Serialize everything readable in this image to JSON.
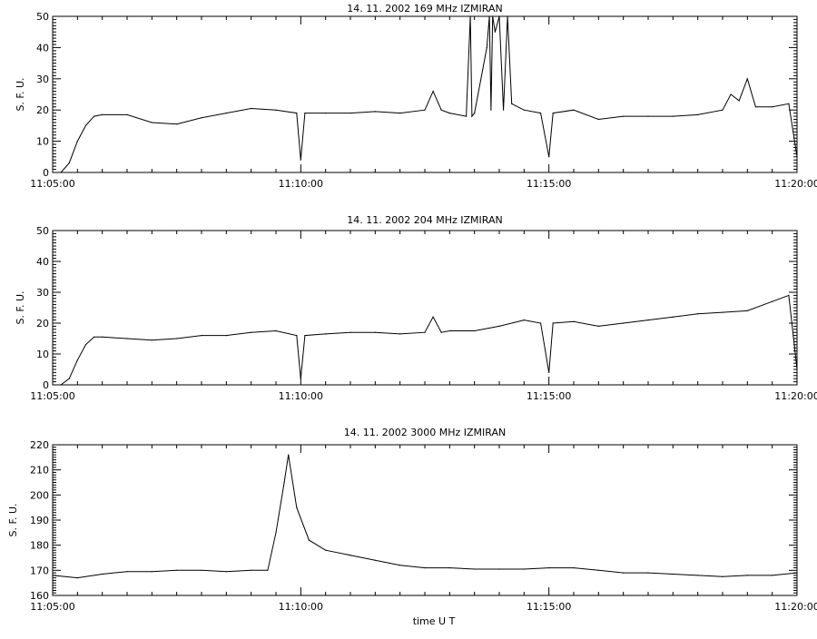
{
  "chart_data": [
    {
      "type": "line",
      "title": "14.  11.  2002    169 MHz     IZMIRAN",
      "xlabel": "",
      "ylabel": "S. F. U.",
      "xlim": [
        "11:05:00",
        "11:20:00"
      ],
      "ylim": [
        0,
        50
      ],
      "yticks": [
        0,
        10,
        20,
        30,
        40,
        50
      ],
      "xticks": [
        "11:05:00",
        "11:10:00",
        "11:15:00",
        "11:20:00"
      ],
      "grid": false,
      "series": [
        {
          "x": [
            "11:05:00",
            "11:05:10",
            "11:05:20",
            "11:05:30",
            "11:05:40",
            "11:05:50",
            "11:06:00",
            "11:06:30",
            "11:07:00",
            "11:07:30",
            "11:08:00",
            "11:08:30",
            "11:09:00",
            "11:09:30",
            "11:09:55",
            "11:10:00",
            "11:10:05",
            "11:10:30",
            "11:11:00",
            "11:11:30",
            "11:12:00",
            "11:12:30",
            "11:12:40",
            "11:12:50",
            "11:13:00",
            "11:13:20",
            "11:13:25",
            "11:13:27",
            "11:13:30",
            "11:13:45",
            "11:13:48",
            "11:13:50",
            "11:13:52",
            "11:13:55",
            "11:14:00",
            "11:14:05",
            "11:14:10",
            "11:14:15",
            "11:14:30",
            "11:14:50",
            "11:15:00",
            "11:15:05",
            "11:15:30",
            "11:16:00",
            "11:16:30",
            "11:17:00",
            "11:17:30",
            "11:18:00",
            "11:18:30",
            "11:18:40",
            "11:18:50",
            "11:19:00",
            "11:19:10",
            "11:19:30",
            "11:19:50",
            "11:20:00"
          ],
          "y": [
            0,
            0,
            3,
            10,
            15,
            18,
            18.5,
            18.5,
            16,
            15.5,
            17.5,
            19,
            20.5,
            20,
            19,
            4,
            19,
            19,
            19,
            19.5,
            19,
            20,
            26,
            20,
            19,
            18,
            50,
            18,
            19,
            40,
            50,
            20,
            50,
            45,
            50,
            20,
            50,
            22,
            20,
            19,
            5,
            19,
            20,
            17,
            18,
            18,
            18,
            18.5,
            20,
            25,
            23,
            30,
            21,
            21,
            22,
            5
          ]
        }
      ]
    },
    {
      "type": "line",
      "title": "14.  11.  2002    204 MHz     IZMIRAN",
      "xlabel": "",
      "ylabel": "S. F. U.",
      "xlim": [
        "11:05:00",
        "11:20:00"
      ],
      "ylim": [
        0,
        50
      ],
      "yticks": [
        0,
        10,
        20,
        30,
        40,
        50
      ],
      "xticks": [
        "11:05:00",
        "11:10:00",
        "11:15:00",
        "11:20:00"
      ],
      "grid": false,
      "series": [
        {
          "x": [
            "11:05:00",
            "11:05:10",
            "11:05:20",
            "11:05:30",
            "11:05:40",
            "11:05:50",
            "11:06:00",
            "11:06:30",
            "11:07:00",
            "11:07:30",
            "11:08:00",
            "11:08:30",
            "11:09:00",
            "11:09:30",
            "11:09:55",
            "11:10:00",
            "11:10:05",
            "11:10:30",
            "11:11:00",
            "11:11:30",
            "11:12:00",
            "11:12:30",
            "11:12:40",
            "11:12:50",
            "11:13:00",
            "11:13:30",
            "11:14:00",
            "11:14:30",
            "11:14:50",
            "11:15:00",
            "11:15:05",
            "11:15:30",
            "11:16:00",
            "11:16:30",
            "11:17:00",
            "11:17:30",
            "11:18:00",
            "11:18:30",
            "11:19:00",
            "11:19:30",
            "11:19:50",
            "11:20:00"
          ],
          "y": [
            0,
            0,
            2,
            8,
            13,
            15.5,
            15.5,
            15,
            14.5,
            15,
            16,
            16,
            17,
            17.5,
            16,
            2,
            16,
            16.5,
            17,
            17,
            16.5,
            17,
            22,
            17,
            17.5,
            17.5,
            19,
            21,
            20,
            4,
            20,
            20.5,
            19,
            20,
            21,
            22,
            23,
            23.5,
            24,
            27,
            29,
            5
          ]
        }
      ]
    },
    {
      "type": "line",
      "title": "14.  11.  2002    3000 MHz    IZMIRAN",
      "xlabel": "time  U T",
      "ylabel": "S. F. U.",
      "xlim": [
        "11:05:00",
        "11:20:00"
      ],
      "ylim": [
        160,
        220
      ],
      "yticks": [
        160,
        170,
        180,
        190,
        200,
        210,
        220
      ],
      "xticks": [
        "11:05:00",
        "11:10:00",
        "11:15:00",
        "11:20:00"
      ],
      "grid": false,
      "series": [
        {
          "x": [
            "11:05:00",
            "11:05:30",
            "11:06:00",
            "11:06:30",
            "11:07:00",
            "11:07:30",
            "11:08:00",
            "11:08:30",
            "11:09:00",
            "11:09:20",
            "11:09:30",
            "11:09:40",
            "11:09:45",
            "11:09:55",
            "11:10:10",
            "11:10:30",
            "11:11:00",
            "11:11:30",
            "11:12:00",
            "11:12:30",
            "11:13:00",
            "11:13:30",
            "11:14:00",
            "11:14:30",
            "11:15:00",
            "11:15:30",
            "11:16:00",
            "11:16:30",
            "11:17:00",
            "11:17:30",
            "11:18:00",
            "11:18:30",
            "11:19:00",
            "11:19:30",
            "11:20:00"
          ],
          "y": [
            168,
            167,
            168.5,
            169.5,
            169.5,
            170,
            170,
            169.5,
            170,
            170,
            185,
            205,
            216,
            195,
            182,
            178,
            176,
            174,
            172,
            171,
            171,
            170.5,
            170.5,
            170.5,
            171,
            171,
            170,
            169,
            169,
            168.5,
            168,
            167.5,
            168,
            168,
            169
          ]
        }
      ]
    }
  ]
}
